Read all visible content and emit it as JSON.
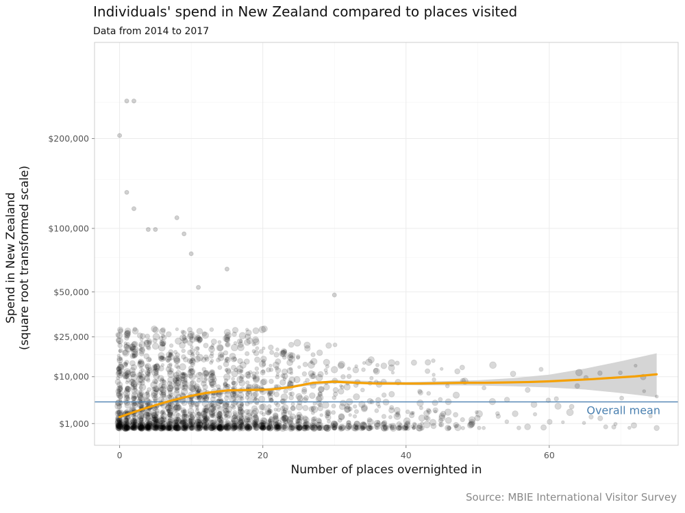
{
  "chart_data": {
    "type": "scatter",
    "title": "Individuals' spend in New Zealand compared to places visited",
    "subtitle": "Data from 2014 to 2017",
    "caption": "Source: MBIE International Visitor Survey",
    "xlabel": "Number of places overnighted in",
    "ylabel_line1": "Spend in New Zealand",
    "ylabel_line2": "(square root transformed scale)",
    "xlim": [
      -3.5,
      78
    ],
    "ylim": [
      0,
      345000
    ],
    "y_scale": "sqrt",
    "grid": true,
    "x_ticks": [
      0,
      20,
      40,
      60
    ],
    "x_tick_labels": [
      "0",
      "20",
      "40",
      "60"
    ],
    "y_ticks": [
      1000,
      10000,
      25000,
      50000,
      100000,
      200000
    ],
    "y_tick_labels": [
      "$1,000",
      "$10,000",
      "$25,000",
      "$50,000",
      "$100,000",
      "$200,000"
    ],
    "y_minor_ticks": [
      5000,
      17500,
      37500,
      75000,
      150000,
      250000
    ],
    "overall_mean": 4000,
    "overall_mean_label": "Overall mean",
    "colors": {
      "points": "#000000",
      "smooth_line": "#f5a000",
      "confidence_band": "#d3d3d3",
      "mean_line": "#4a80b0",
      "grid": "#ebebeb",
      "panel_border": "#cccccc"
    },
    "smooth_line": {
      "x": [
        0,
        3,
        6,
        9,
        12,
        15,
        18,
        21,
        24,
        27,
        30,
        33,
        36,
        39,
        42,
        45,
        48,
        51,
        54,
        57,
        60,
        63,
        66,
        69,
        72,
        75
      ],
      "y": [
        1700,
        2700,
        3800,
        4900,
        5800,
        6400,
        6500,
        6600,
        7200,
        8300,
        8600,
        8300,
        8100,
        8100,
        8100,
        8200,
        8300,
        8300,
        8400,
        8500,
        8700,
        9000,
        9300,
        9700,
        10100,
        10700
      ]
    },
    "confidence_band": {
      "x": [
        0,
        10,
        20,
        30,
        40,
        50,
        55,
        60,
        65,
        70,
        75
      ],
      "lower": [
        1500,
        4900,
        6400,
        8200,
        7700,
        7600,
        7400,
        7100,
        6600,
        5800,
        4900
      ],
      "upper": [
        1900,
        5400,
        6800,
        9100,
        8500,
        9000,
        9600,
        10600,
        12500,
        15000,
        18000
      ]
    },
    "notable_points": {
      "x": [
        0,
        1,
        2,
        1,
        2,
        4,
        8,
        9,
        5,
        10,
        11,
        15,
        30
      ],
      "y": [
        204000,
        252000,
        252000,
        136000,
        119000,
        99000,
        110000,
        95000,
        99000,
        78000,
        53000,
        66000,
        48000
      ]
    }
  }
}
